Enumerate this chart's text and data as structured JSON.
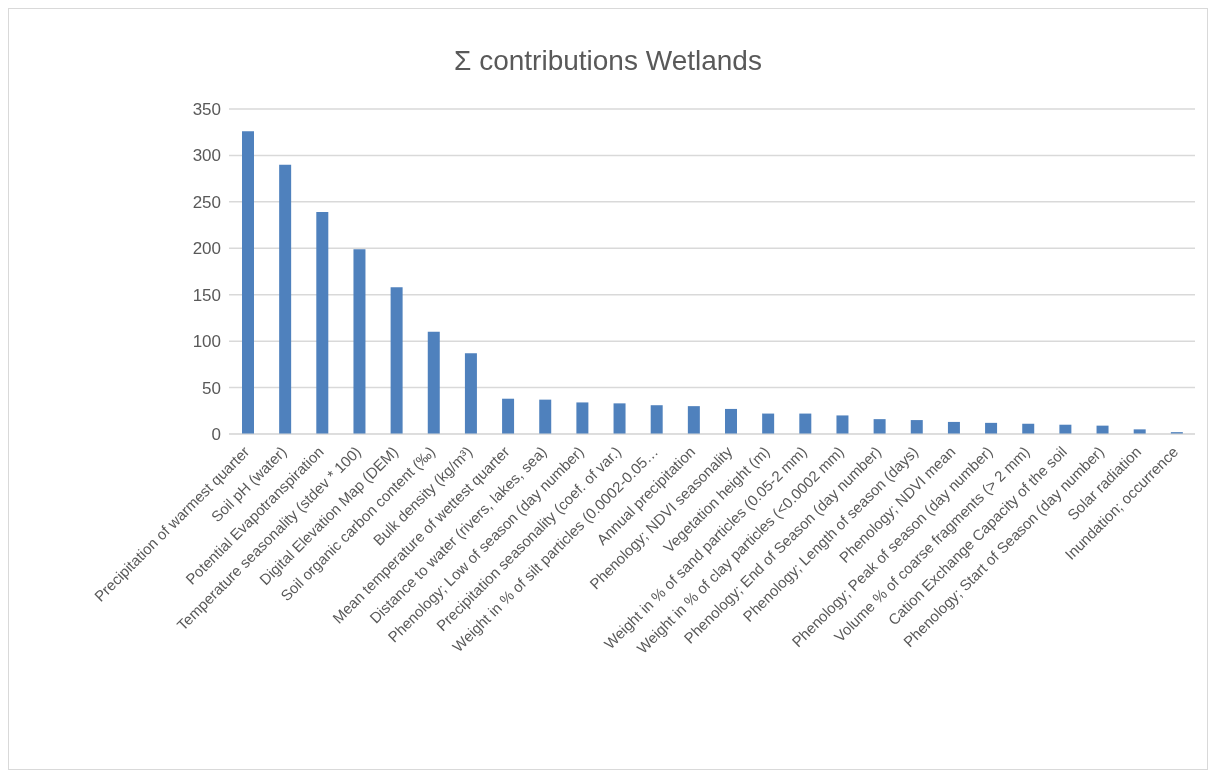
{
  "chart_data": {
    "type": "bar",
    "title": "Σ contributions Wetlands",
    "categories": [
      "Precipitation of warmest quarter",
      "Soil pH (water)",
      "Potential Evapotranspiration",
      "Temperature seasonality (stdev * 100)",
      "Digital Elevation Map (DEM)",
      "Soil organic carbon content (‰)",
      "Bulk density (kg/m³)",
      "Mean temperature of wettest quarter",
      "Distance to water (rivers, lakes, sea)",
      "Phenology; Low of season (day number)",
      "Precipitation seasonality (coef. of var.)",
      "Weight in % of silt particles (0.0002-0.05…",
      "Annual precipitation",
      "Phenology; NDVI seasonality",
      "Vegetation height (m)",
      "Weight in % of sand particles (0.05-2 mm)",
      "Weight in % of clay particles (<0.0002 mm)",
      "Phenology; End of Season (day number)",
      "Phenology; Length of season (days)",
      "Phenology; NDVI mean",
      "Phenology; Peak of season (day number)",
      "Volume % of coarse fragments (> 2 mm)",
      "Cation Exchange Capacity of the soil",
      "Phenology; Start of Season (day number)",
      "Solar radiation",
      "Inundation; occurrence"
    ],
    "values": [
      326,
      290,
      239,
      199,
      158,
      110,
      87,
      38,
      37,
      34,
      33,
      31,
      30,
      27,
      22,
      22,
      20,
      16,
      15,
      13,
      12,
      11,
      10,
      9,
      5,
      2
    ],
    "color": "#4f81bd",
    "ylim": [
      0,
      350
    ],
    "yticks": [
      0,
      50,
      100,
      150,
      200,
      250,
      300,
      350
    ],
    "grid": "y"
  }
}
